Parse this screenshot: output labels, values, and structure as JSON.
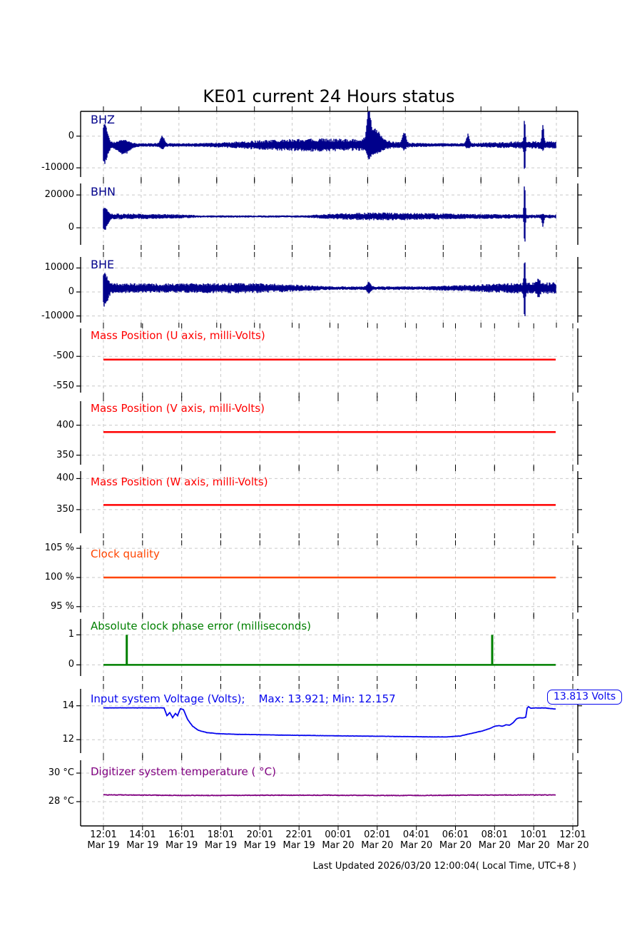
{
  "title": "KE01 current 24 Hours status",
  "footer": "Last Updated 2026/03/20 12:00:04( Local Time, UTC+8 )",
  "voltage_badge": {
    "label": "13.813 Volts"
  },
  "x_axis": {
    "ticks": [
      {
        "time": "12:01",
        "date": "Mar 19"
      },
      {
        "time": "14:01",
        "date": "Mar 19"
      },
      {
        "time": "16:01",
        "date": "Mar 19"
      },
      {
        "time": "18:01",
        "date": "Mar 19"
      },
      {
        "time": "20:01",
        "date": "Mar 19"
      },
      {
        "time": "22:01",
        "date": "Mar 19"
      },
      {
        "time": "00:01",
        "date": "Mar 20"
      },
      {
        "time": "02:01",
        "date": "Mar 20"
      },
      {
        "time": "04:01",
        "date": "Mar 20"
      },
      {
        "time": "06:01",
        "date": "Mar 20"
      },
      {
        "time": "08:01",
        "date": "Mar 20"
      },
      {
        "time": "10:01",
        "date": "Mar 20"
      },
      {
        "time": "12:01",
        "date": "Mar 20"
      }
    ]
  },
  "colors": {
    "seismogram": "#00008b",
    "mass": "#ff0000",
    "clock": "#ff4500",
    "phase": "#008000",
    "voltage": "#0606ee",
    "temperature": "#800080",
    "grid": "#c9c9c9",
    "axis": "#000000"
  },
  "chart_data": [
    {
      "id": "bhz",
      "type": "seismogram",
      "label": "BHZ",
      "label_color": "#00008b",
      "color": "#00008b",
      "ylim": [
        -12900,
        7800
      ],
      "yticks": [
        {
          "v": 0,
          "t": "0"
        },
        {
          "v": -10000,
          "t": "-10000"
        }
      ],
      "baseline": -2800,
      "noise_amp": 1750,
      "seed": 7,
      "events": [
        {
          "f": 0.003,
          "w": 0.006,
          "up": 6200,
          "down": 5200
        },
        {
          "f": 0.045,
          "w": 0.012,
          "up": 1200,
          "down": 2600
        },
        {
          "f": 0.13,
          "w": 0.004,
          "up": 2600,
          "down": 900
        },
        {
          "f": 0.587,
          "w": 0.0035,
          "up": 9800,
          "down": 2600
        },
        {
          "f": 0.6,
          "w": 0.013,
          "up": 3800,
          "down": 1800
        },
        {
          "f": 0.665,
          "w": 0.0035,
          "up": 3600,
          "down": 900
        },
        {
          "f": 0.806,
          "w": 0.003,
          "up": 3200,
          "down": 800
        },
        {
          "f": 0.9314,
          "w": 0.0013,
          "up": 8400,
          "down": 8600
        },
        {
          "f": 0.9716,
          "w": 0.0018,
          "up": 6600,
          "down": 700
        }
      ]
    },
    {
      "id": "bhn",
      "type": "seismogram",
      "label": "BHN",
      "label_color": "#00008b",
      "color": "#00008b",
      "ylim": [
        -10400,
        27000
      ],
      "yticks": [
        {
          "v": 20000,
          "t": "20000"
        },
        {
          "v": 0,
          "t": "0"
        }
      ],
      "baseline": 6900,
      "noise_amp": 2100,
      "seed": 13,
      "events": [
        {
          "f": 0.003,
          "w": 0.006,
          "up": 4200,
          "down": 7200
        },
        {
          "f": 0.9314,
          "w": 0.0013,
          "up": 21000,
          "down": 17000
        },
        {
          "f": 0.9716,
          "w": 0.0018,
          "up": 900,
          "down": 5600
        }
      ]
    },
    {
      "id": "bhe",
      "type": "seismogram",
      "label": "BHE",
      "label_color": "#00008b",
      "color": "#00008b",
      "ylim": [
        -12800,
        14600
      ],
      "yticks": [
        {
          "v": 10000,
          "t": "10000"
        },
        {
          "v": 0,
          "t": "0"
        },
        {
          "v": -10000,
          "t": "-10000"
        }
      ],
      "baseline": 1600,
      "noise_amp": 2300,
      "seed": 29,
      "events": [
        {
          "f": 0.003,
          "w": 0.006,
          "up": 4600,
          "down": 6200
        },
        {
          "f": 0.587,
          "w": 0.004,
          "up": 2000,
          "down": 1600
        },
        {
          "f": 0.9314,
          "w": 0.0013,
          "up": 13500,
          "down": 12600
        },
        {
          "f": 0.962,
          "w": 0.003,
          "up": 2600,
          "down": 2200
        }
      ]
    },
    {
      "id": "mass_u",
      "type": "flat",
      "label": "Mass Position (U axis, milli-Volts)",
      "label_color": "#ff0000",
      "color": "#ff0000",
      "ylim": [
        -561,
        -453
      ],
      "yticks": [
        {
          "v": -500,
          "t": "-500"
        },
        {
          "v": -550,
          "t": "-550"
        }
      ],
      "value": -505.5
    },
    {
      "id": "mass_v",
      "type": "flat",
      "label": "Mass Position (V axis, milli-Volts)",
      "label_color": "#ff0000",
      "color": "#ff0000",
      "ylim": [
        334,
        440
      ],
      "yticks": [
        {
          "v": 400,
          "t": "400"
        },
        {
          "v": 350,
          "t": "350"
        }
      ],
      "value": 388.5
    },
    {
      "id": "mass_w",
      "type": "flat",
      "label": "Mass Position (W axis, milli-Volts)",
      "label_color": "#ff0000",
      "color": "#ff0000",
      "ylim": [
        312,
        412
      ],
      "yticks": [
        {
          "v": 400,
          "t": "400"
        },
        {
          "v": 350,
          "t": "350"
        }
      ],
      "value": 357.5
    },
    {
      "id": "clock",
      "type": "flat",
      "label": "Clock quality",
      "label_color": "#ff4500",
      "color": "#ff4500",
      "ylim": [
        94,
        105.5
      ],
      "yticks": [
        {
          "v": 105,
          "t": "105 %"
        },
        {
          "v": 100,
          "t": "100 %"
        },
        {
          "v": 95,
          "t": "95 %"
        }
      ],
      "value": 100
    },
    {
      "id": "phase",
      "type": "spikes",
      "label": "Absolute clock phase error (milliseconds)",
      "label_color": "#008000",
      "color": "#008000",
      "ylim": [
        -0.37,
        1.53
      ],
      "yticks": [
        {
          "v": 1,
          "t": "1"
        },
        {
          "v": 0,
          "t": "0"
        }
      ],
      "value": 0,
      "spikes": [
        {
          "f": 0.0516,
          "v": 1
        },
        {
          "f": 0.8596,
          "v": 1
        }
      ]
    },
    {
      "id": "volt",
      "type": "keypoints",
      "label": "Input system Voltage (Volts);    Max: 13.921; Min: 12.157",
      "label_color": "#0606ee",
      "color": "#0606ee",
      "ylim": [
        11.21,
        15.0
      ],
      "yticks": [
        {
          "v": 14,
          "t": "14"
        },
        {
          "v": 12,
          "t": "12"
        }
      ],
      "max": 13.921,
      "min": 12.157,
      "last_value": 13.813,
      "points": [
        [
          0,
          13.88
        ],
        [
          0.134,
          13.88
        ],
        [
          0.1404,
          13.42
        ],
        [
          0.1467,
          13.6
        ],
        [
          0.153,
          13.3
        ],
        [
          0.159,
          13.55
        ],
        [
          0.164,
          13.42
        ],
        [
          0.17,
          13.83
        ],
        [
          0.177,
          13.78
        ],
        [
          0.186,
          13.2
        ],
        [
          0.197,
          12.8
        ],
        [
          0.21,
          12.55
        ],
        [
          0.229,
          12.42
        ],
        [
          0.252,
          12.36
        ],
        [
          0.292,
          12.32
        ],
        [
          0.402,
          12.27
        ],
        [
          0.513,
          12.23
        ],
        [
          0.623,
          12.2
        ],
        [
          0.718,
          12.17
        ],
        [
          0.757,
          12.16
        ],
        [
          0.789,
          12.22
        ],
        [
          0.815,
          12.38
        ],
        [
          0.838,
          12.52
        ],
        [
          0.853,
          12.65
        ],
        [
          0.866,
          12.8
        ],
        [
          0.875,
          12.83
        ],
        [
          0.882,
          12.79
        ],
        [
          0.89,
          12.88
        ],
        [
          0.898,
          12.86
        ],
        [
          0.906,
          13.0
        ],
        [
          0.913,
          13.22
        ],
        [
          0.92,
          13.3
        ],
        [
          0.927,
          13.28
        ],
        [
          0.934,
          13.33
        ],
        [
          0.937,
          13.88
        ],
        [
          0.94,
          13.95
        ],
        [
          0.945,
          13.86
        ],
        [
          0.957,
          13.88
        ],
        [
          0.978,
          13.87
        ],
        [
          1,
          13.81
        ]
      ]
    },
    {
      "id": "temp",
      "type": "noisyflat",
      "label": "Digitizer system temperature ( °C)",
      "label_color": "#800080",
      "color": "#800080",
      "ylim": [
        26.3,
        30.9
      ],
      "yticks": [
        {
          "v": 30,
          "t": "30 °C"
        },
        {
          "v": 28,
          "t": "28 °C"
        }
      ],
      "value": 28.46,
      "noise": 0.04
    }
  ]
}
